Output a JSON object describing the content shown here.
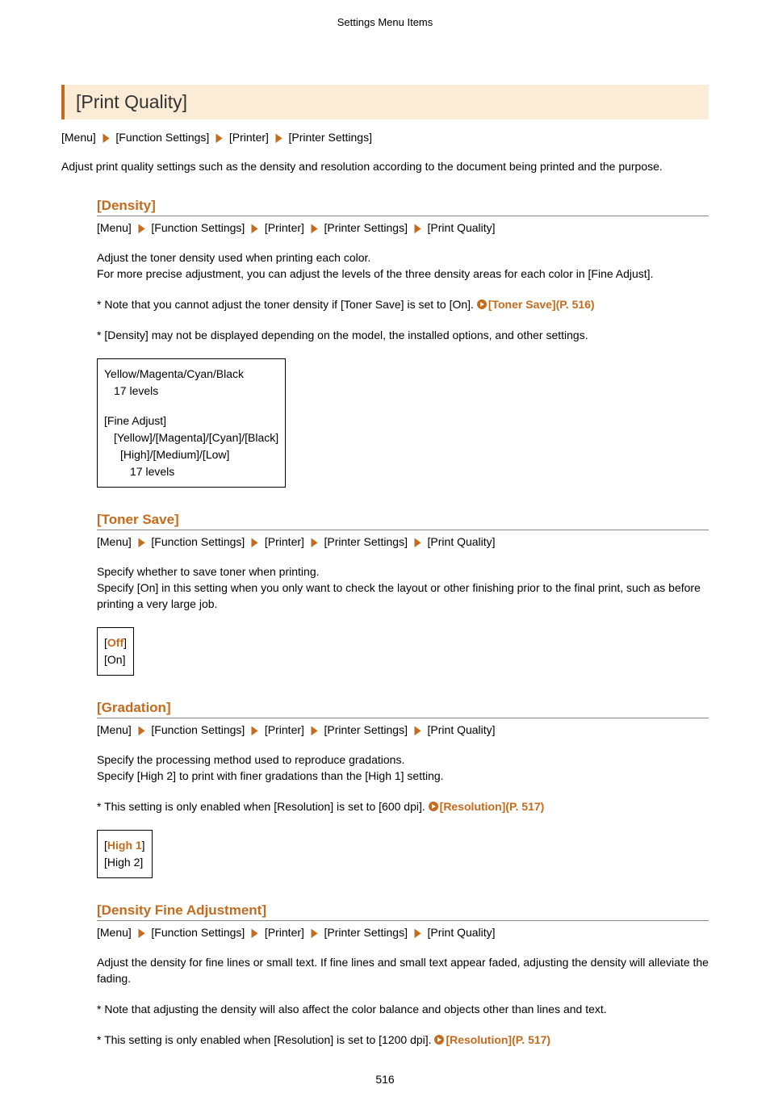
{
  "header": {
    "title": "Settings Menu Items"
  },
  "mainHeading": "[Print Quality]",
  "mainBreadcrumb": [
    "[Menu]",
    "[Function Settings]",
    "[Printer]",
    "[Printer Settings]"
  ],
  "intro": "Adjust print quality settings such as the density and resolution according to the document being printed and the purpose.",
  "sections": {
    "density": {
      "heading": "[Density]",
      "breadcrumb": [
        "[Menu]",
        "[Function Settings]",
        "[Printer]",
        "[Printer Settings]",
        "[Print Quality]"
      ],
      "body1a": "Adjust the toner density used when printing each color.",
      "body1b": "For more precise adjustment, you can adjust the levels of the three density areas for each color in [Fine Adjust].",
      "note1_pre": "* Note that you cannot adjust the toner density if [Toner Save] is set to [On]. ",
      "note1_link": "[Toner Save](P. 516)",
      "note2": "* [Density] may not be displayed depending on the model, the installed options, and other settings.",
      "options": {
        "line1": "Yellow/Magenta/Cyan/Black",
        "line2": "17 levels",
        "line3": "[Fine Adjust]",
        "line4": "[Yellow]/[Magenta]/[Cyan]/[Black]",
        "line5": "[High]/[Medium]/[Low]",
        "line6": "17 levels"
      }
    },
    "tonerSave": {
      "heading": "[Toner Save]",
      "breadcrumb": [
        "[Menu]",
        "[Function Settings]",
        "[Printer]",
        "[Printer Settings]",
        "[Print Quality]"
      ],
      "body1a": "Specify whether to save toner when printing.",
      "body1b": "Specify [On] in this setting when you only want to check the layout or other finishing prior to the final print, such as before printing a very large job.",
      "options": {
        "off_open": "[",
        "off_val": "Off",
        "off_close": "]",
        "on": "[On]"
      }
    },
    "gradation": {
      "heading": "[Gradation]",
      "breadcrumb": [
        "[Menu]",
        "[Function Settings]",
        "[Printer]",
        "[Printer Settings]",
        "[Print Quality]"
      ],
      "body1a": "Specify the processing method used to reproduce gradations.",
      "body1b": "Specify [High 2] to print with finer gradations than the [High 1] setting.",
      "note1_pre": "* This setting is only enabled when [Resolution] is set to [600 dpi]. ",
      "note1_link": "[Resolution](P. 517)",
      "options": {
        "h1_open": "[",
        "h1_val": "High 1",
        "h1_close": "]",
        "h2": "[High 2]"
      }
    },
    "densityFine": {
      "heading": "[Density Fine Adjustment]",
      "breadcrumb": [
        "[Menu]",
        "[Function Settings]",
        "[Printer]",
        "[Printer Settings]",
        "[Print Quality]"
      ],
      "body1": "Adjust the density for fine lines or small text. If fine lines and small text appear faded, adjusting the density will alleviate the fading.",
      "note1": "* Note that adjusting the density will also affect the color balance and objects other than lines and text.",
      "note2_pre": "* This setting is only enabled when [Resolution] is set to [1200 dpi]. ",
      "note2_link": "[Resolution](P. 517)"
    }
  },
  "pageNumber": "516"
}
